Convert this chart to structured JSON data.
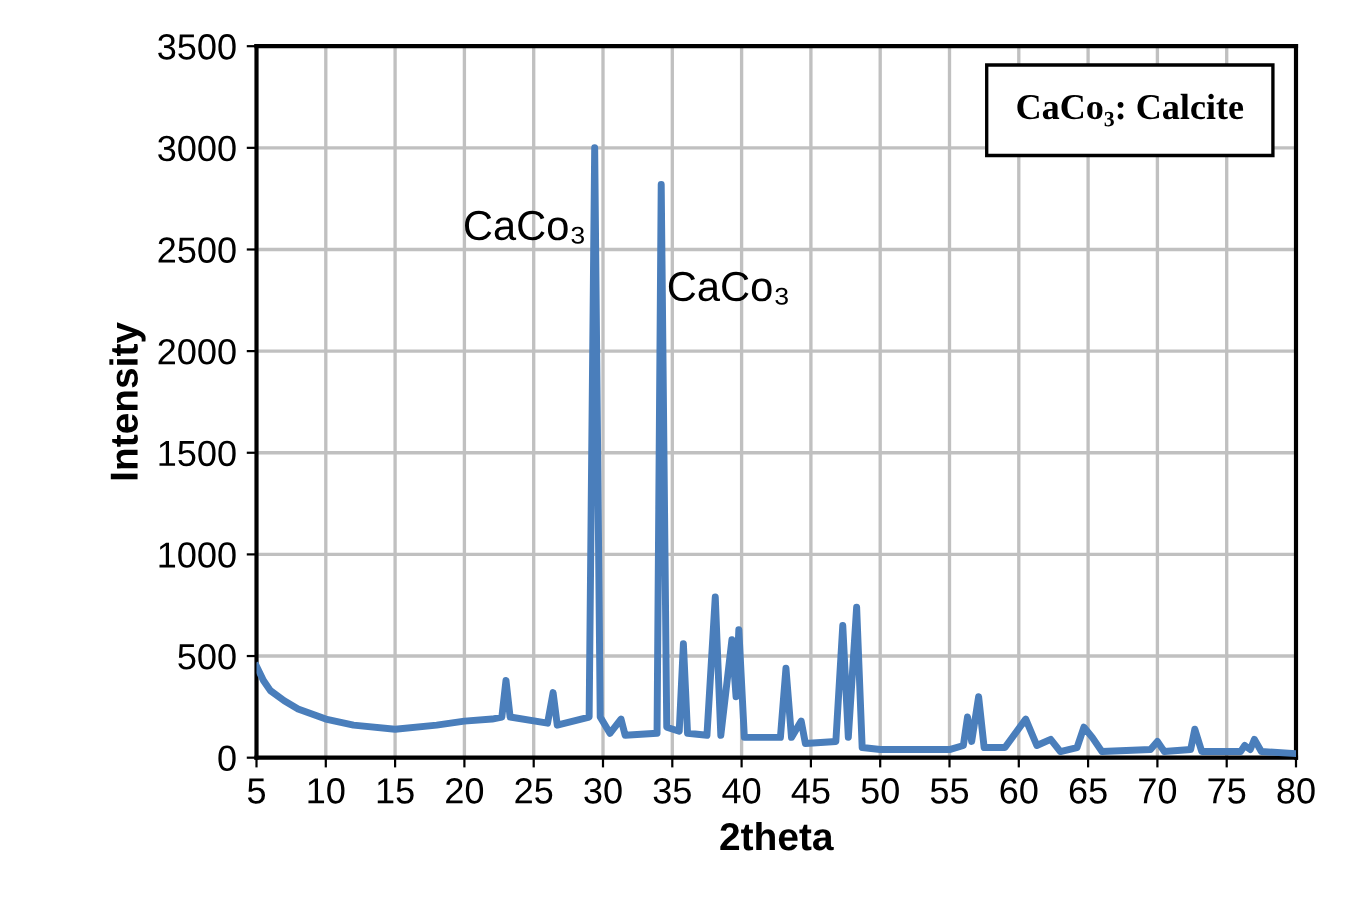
{
  "chart_data": {
    "type": "line",
    "xlabel": "2theta",
    "ylabel": "Intensity",
    "grid": true,
    "legend": false,
    "marker": "none",
    "line_style": "solid",
    "xlim": [
      5,
      80
    ],
    "xticks": [
      5,
      10,
      15,
      20,
      25,
      30,
      35,
      40,
      45,
      50,
      55,
      60,
      65,
      70,
      75,
      80
    ],
    "ylim": [
      0,
      3500
    ],
    "yticks": [
      0,
      500,
      1000,
      1500,
      2000,
      2500,
      3000,
      3500
    ],
    "annotations": [
      {
        "text": "CaCo₃",
        "x": 29.4,
        "y": 2600
      },
      {
        "text": "CaCo₃",
        "x": 34.2,
        "y": 2300
      },
      "CaCo₃: Calcite"
    ],
    "series": [
      {
        "color": "#4a7ebb",
        "x": [
          5,
          5.5,
          6,
          7,
          8,
          10,
          12,
          15,
          18,
          20,
          22,
          22.7,
          23,
          23.3,
          26,
          26.4,
          26.7,
          29.0,
          29.4,
          29.8,
          30.5,
          31.3,
          31.6,
          33.9,
          34.2,
          34.6,
          35.5,
          35.8,
          36.1,
          37.5,
          38.1,
          38.5,
          39.3,
          39.6,
          39.8,
          40.2,
          42.8,
          43.2,
          43.6,
          44.3,
          44.6,
          46.8,
          47.3,
          47.7,
          48.3,
          48.7,
          50,
          55,
          56,
          56.3,
          56.6,
          57.1,
          57.5,
          59,
          60.5,
          61.3,
          62.3,
          63,
          64.2,
          64.7,
          65.3,
          66,
          69.5,
          70,
          70.5,
          72.4,
          72.7,
          73.2,
          76,
          76.3,
          76.7,
          77,
          77.5,
          80
        ],
        "values": [
          450,
          380,
          330,
          280,
          240,
          190,
          160,
          140,
          160,
          180,
          190,
          200,
          380,
          200,
          170,
          320,
          160,
          200,
          3000,
          200,
          120,
          190,
          110,
          120,
          2820,
          150,
          130,
          560,
          120,
          110,
          790,
          110,
          580,
          300,
          630,
          100,
          100,
          440,
          100,
          180,
          70,
          80,
          650,
          100,
          740,
          50,
          40,
          40,
          60,
          200,
          80,
          300,
          50,
          50,
          190,
          60,
          90,
          30,
          50,
          150,
          100,
          30,
          40,
          80,
          30,
          40,
          140,
          30,
          30,
          60,
          40,
          90,
          30,
          20
        ]
      }
    ]
  }
}
